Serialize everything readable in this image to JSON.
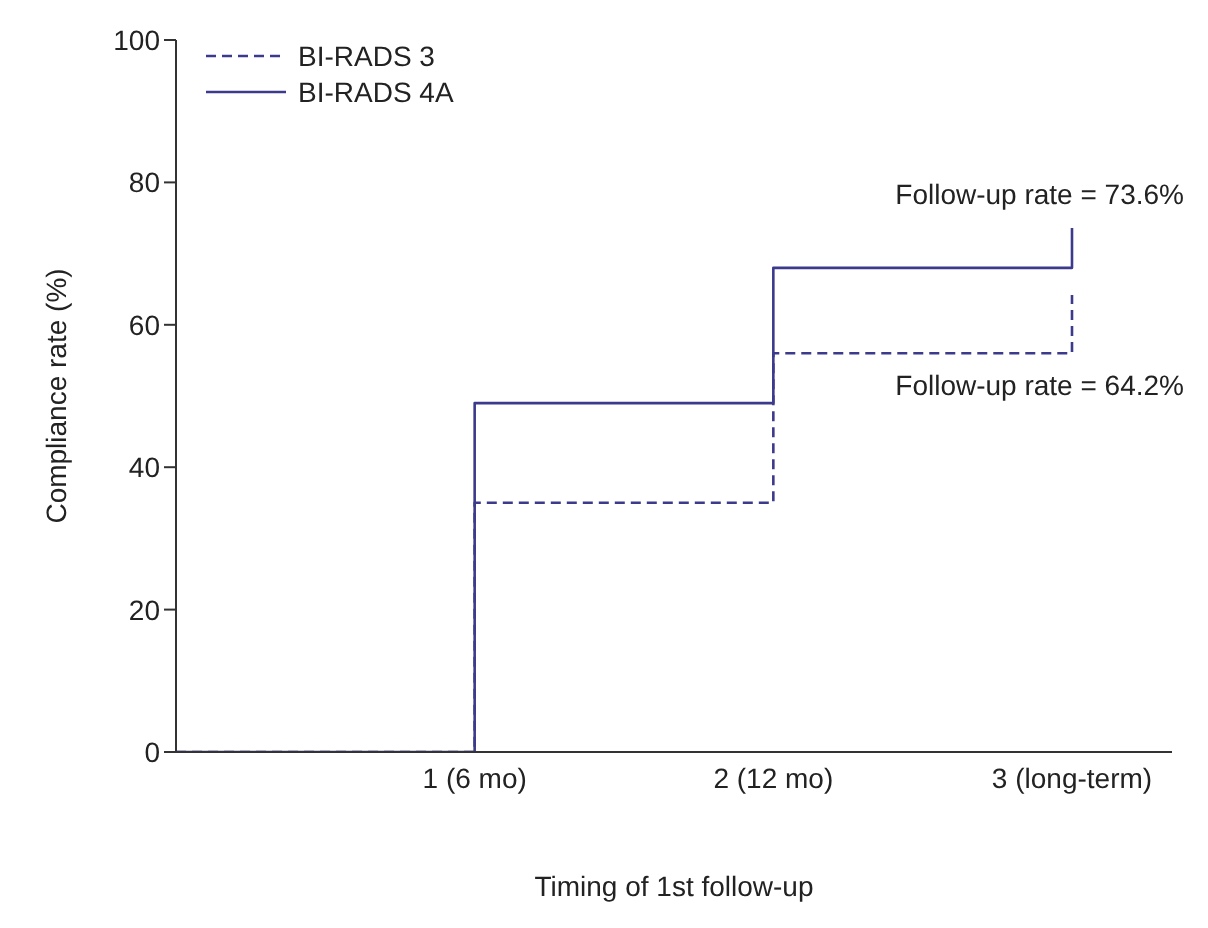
{
  "chart_data": {
    "type": "step",
    "xlabel": "Timing of 1st follow-up",
    "ylabel": "Compliance rate (%)",
    "categories": [
      null,
      "1 (6 mo)",
      "2 (12 mo)",
      "3 (long-term)"
    ],
    "series": [
      {
        "name": "BI-RADS 3",
        "color": "#3c3a8c",
        "line_style": "dashed",
        "values": [
          0,
          35,
          56,
          64.2
        ]
      },
      {
        "name": "BI-RADS 4A",
        "color": "#3c3a8c",
        "line_style": "solid",
        "values": [
          0,
          49,
          68,
          73.6
        ]
      }
    ],
    "ylim": [
      0,
      100
    ],
    "yticks": [
      0,
      20,
      40,
      60,
      80,
      100
    ],
    "annotations": [
      {
        "text": "Follow-up rate = 73.6%",
        "x": "3 (long-term)",
        "y": 73.6
      },
      {
        "text": "Follow-up rate = 64.2%",
        "x": "3 (long-term)",
        "y": 64.2
      }
    ],
    "legend": "top left",
    "marker": "none"
  }
}
